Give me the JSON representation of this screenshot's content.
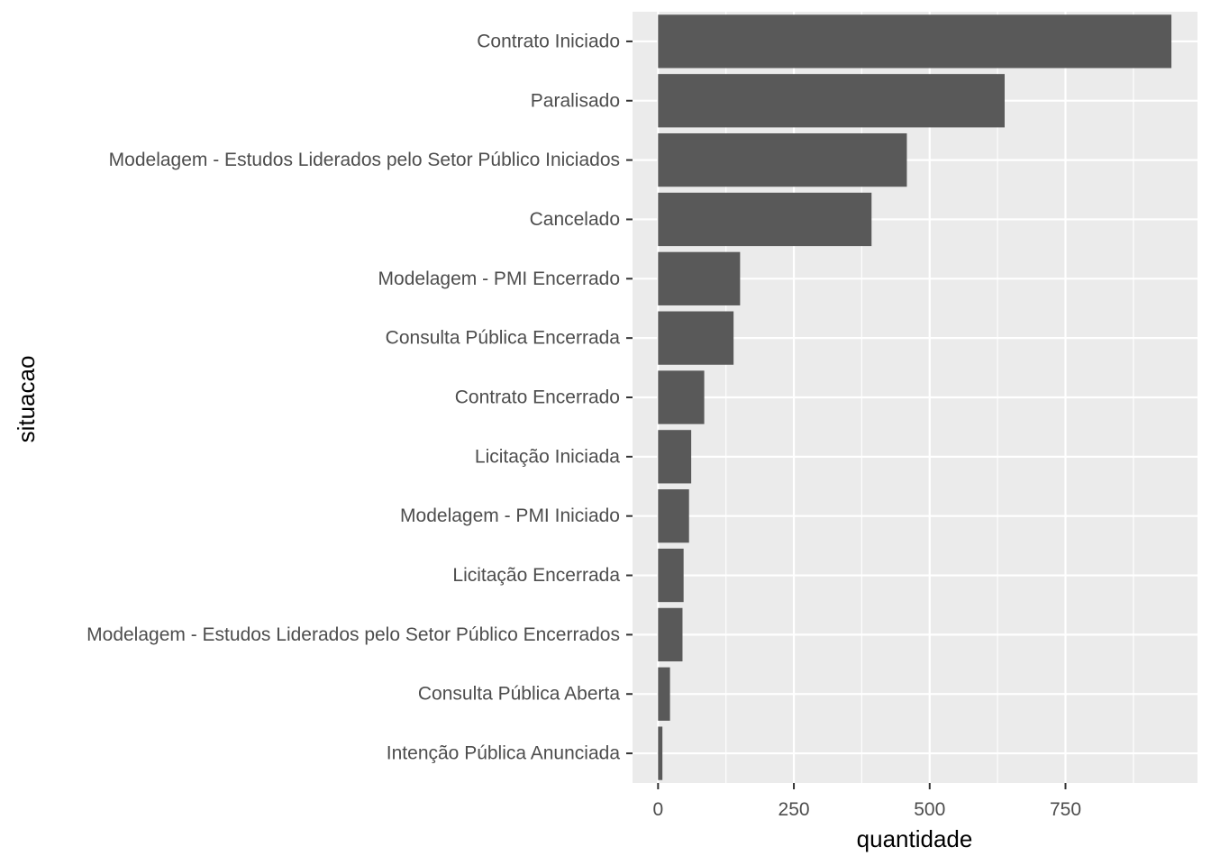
{
  "chart_data": {
    "type": "bar",
    "orientation": "horizontal",
    "categories": [
      "Contrato Iniciado",
      "Paralisado",
      "Modelagem - Estudos Liderados pelo Setor Público Iniciados",
      "Cancelado",
      "Modelagem - PMI Encerrado",
      "Consulta Pública Encerrada",
      "Contrato Encerrado",
      "Licitação Iniciada",
      "Modelagem - PMI Iniciado",
      "Licitação Encerrada",
      "Modelagem - Estudos Liderados pelo Setor Público Encerrados",
      "Consulta Pública Aberta",
      "Intenção Pública Anunciada"
    ],
    "values": [
      945,
      638,
      458,
      393,
      151,
      139,
      85,
      61,
      57,
      47,
      45,
      22,
      8
    ],
    "xlabel": "quantidade",
    "ylabel": "situacao",
    "xlim": [
      -47,
      993
    ],
    "xticks": [
      0,
      250,
      500,
      750
    ],
    "grid": true,
    "colors": {
      "bar": "#595959",
      "panel": "#ebebeb",
      "grid": "#ffffff"
    }
  }
}
